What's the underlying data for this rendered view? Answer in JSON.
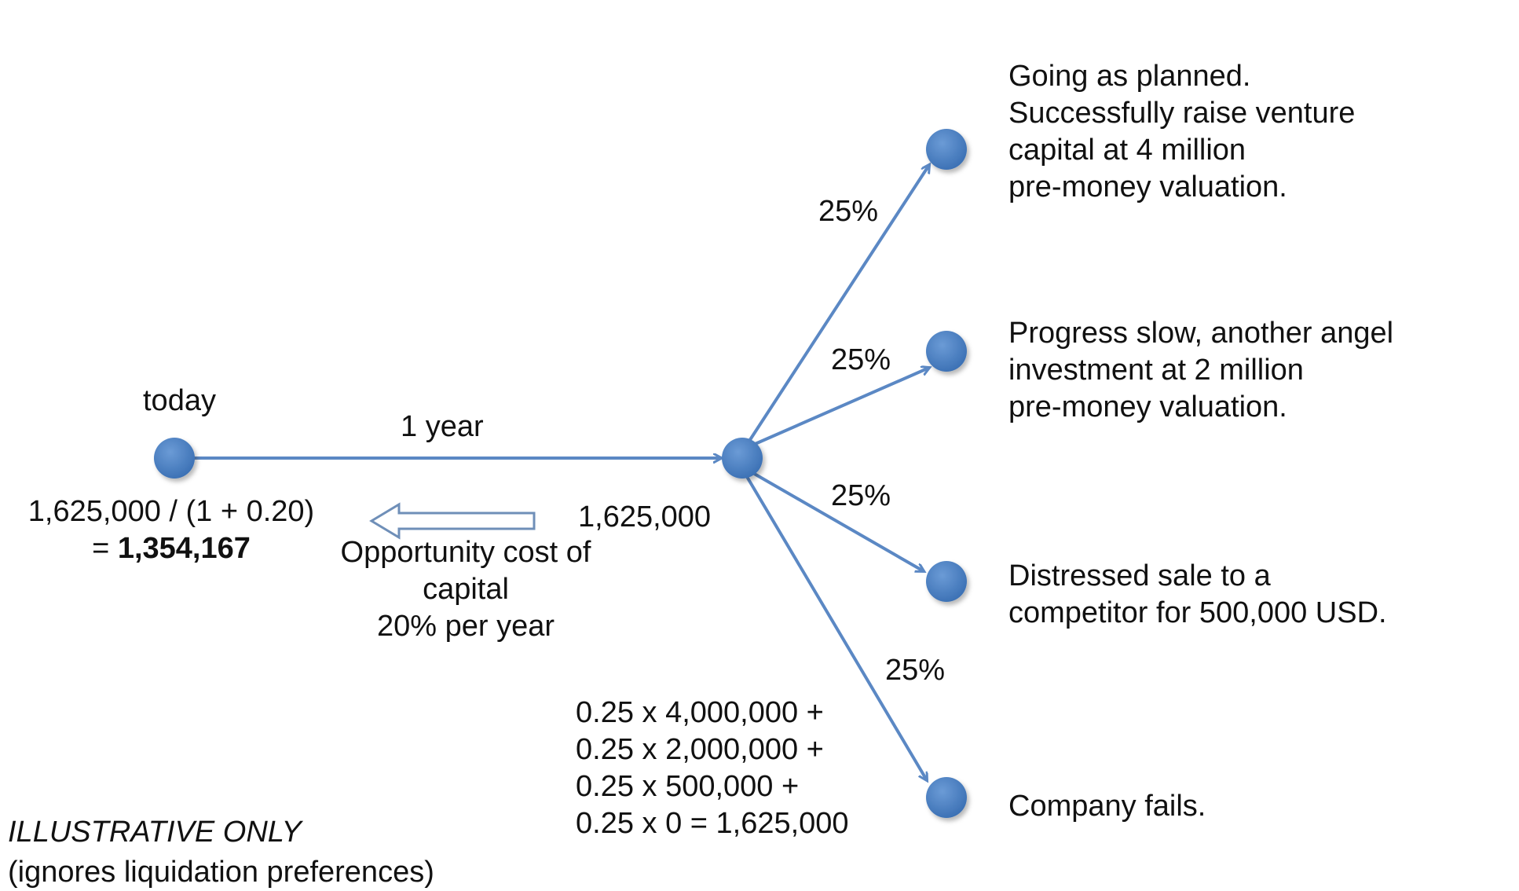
{
  "today_label": "today",
  "edge_label": "1 year",
  "discount": {
    "line1": "1,625,000 / (1 + 0.20)",
    "eq": "= ",
    "result": "1,354,167"
  },
  "expected_value": "1,625,000",
  "opportunity_cost": {
    "line1": "Opportunity cost of",
    "line2": "capital",
    "line3": "20% per year"
  },
  "calc": {
    "line1": "0.25 x 4,000,000 +",
    "line2": "0.25 x 2,000,000 +",
    "line3": "0.25 x 500,000 +",
    "line4": "0.25 x 0 = 1,625,000"
  },
  "outcomes": [
    {
      "prob": "25%",
      "lines": [
        "Going as planned.",
        "Successfully raise venture",
        "capital at 4 million",
        "pre-money valuation."
      ]
    },
    {
      "prob": "25%",
      "lines": [
        "Progress slow, another angel",
        "investment at 2 million",
        "pre-money valuation."
      ]
    },
    {
      "prob": "25%",
      "lines": [
        "Distressed sale to a",
        "competitor for 500,000 USD."
      ]
    },
    {
      "prob": "25%",
      "lines": [
        "Company fails."
      ]
    }
  ],
  "footer": {
    "title": "ILLUSTRATIVE ONLY",
    "note": "(ignores liquidation preferences)"
  },
  "colors": {
    "node": "#4f81bd",
    "node_dark": "#2f5f9a",
    "edge": "#5b88c4",
    "outline_arrow": "#6f8fb8"
  }
}
